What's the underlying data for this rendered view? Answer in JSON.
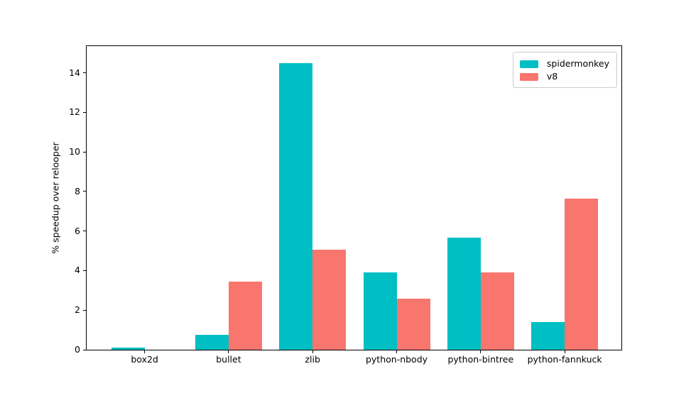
{
  "chart_data": {
    "type": "bar",
    "title": "",
    "xlabel": "",
    "ylabel": "% speedup over relooper",
    "categories": [
      "box2d",
      "bullet",
      "zlib",
      "python-nbody",
      "python-bintree",
      "python-fannkuck"
    ],
    "series": [
      {
        "name": "spidermonkey",
        "color": "#00BFC4",
        "values": [
          0.1,
          0.75,
          14.5,
          3.9,
          5.65,
          1.4
        ]
      },
      {
        "name": "v8",
        "color": "#F8766D",
        "values": [
          0,
          3.45,
          5.05,
          2.6,
          3.9,
          7.65
        ]
      }
    ],
    "yticks": [
      0,
      2,
      4,
      6,
      8,
      10,
      12,
      14
    ],
    "ylim": [
      0,
      15.35
    ],
    "grid": false,
    "legend_position": "upper right",
    "colors": {
      "spine": "#000000",
      "background": "#ffffff",
      "legend_border": "#cccccc",
      "text": "#000000"
    }
  }
}
